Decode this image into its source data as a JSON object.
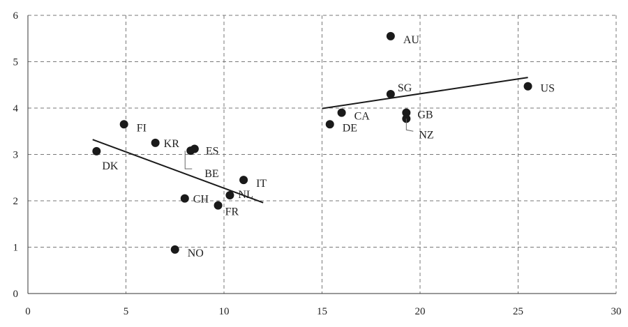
{
  "chart_data": {
    "type": "scatter",
    "title": "",
    "xlabel": "",
    "ylabel": "",
    "xlim": [
      0,
      30
    ],
    "ylim": [
      0,
      6
    ],
    "xticks": [
      0,
      5,
      10,
      15,
      20,
      25,
      30
    ],
    "yticks": [
      0,
      1,
      2,
      3,
      4,
      5,
      6
    ],
    "grid": true,
    "points": [
      {
        "label": "DK",
        "x": 3.5,
        "y": 3.07
      },
      {
        "label": "FI",
        "x": 4.9,
        "y": 3.65
      },
      {
        "label": "KR",
        "x": 6.5,
        "y": 3.25
      },
      {
        "label": "BE",
        "x": 8.3,
        "y": 3.08
      },
      {
        "label": "ES",
        "x": 8.5,
        "y": 3.12
      },
      {
        "label": "NO",
        "x": 7.5,
        "y": 0.95
      },
      {
        "label": "CH",
        "x": 8.0,
        "y": 2.05
      },
      {
        "label": "FR",
        "x": 9.7,
        "y": 1.9
      },
      {
        "label": "NL",
        "x": 10.3,
        "y": 2.12
      },
      {
        "label": "IT",
        "x": 11.0,
        "y": 2.45
      },
      {
        "label": "DE",
        "x": 15.4,
        "y": 3.65
      },
      {
        "label": "CA",
        "x": 16.0,
        "y": 3.9
      },
      {
        "label": "AU",
        "x": 18.5,
        "y": 5.55
      },
      {
        "label": "SG",
        "x": 18.5,
        "y": 4.3
      },
      {
        "label": "GB",
        "x": 19.3,
        "y": 3.9
      },
      {
        "label": "NZ",
        "x": 19.3,
        "y": 3.77
      },
      {
        "label": "US",
        "x": 25.5,
        "y": 4.47
      }
    ],
    "trendlines": [
      {
        "x": [
          3.3,
          12.0
        ],
        "y": [
          3.32,
          1.96
        ]
      },
      {
        "x": [
          15.0,
          25.5
        ],
        "y": [
          3.99,
          4.66
        ]
      }
    ]
  }
}
